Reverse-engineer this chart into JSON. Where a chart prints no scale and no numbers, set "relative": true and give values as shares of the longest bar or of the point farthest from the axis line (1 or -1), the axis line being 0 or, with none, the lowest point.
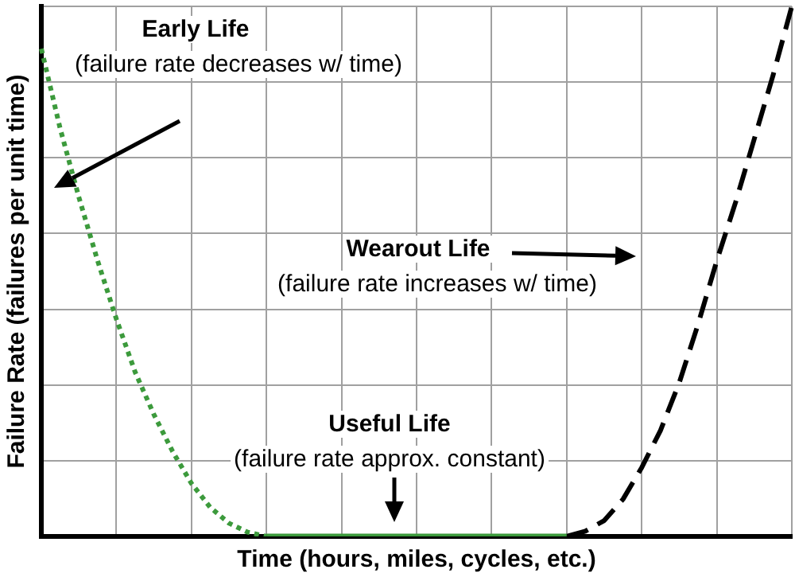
{
  "chart_data": {
    "type": "line",
    "relative": true,
    "xlabel": "Time (hours, miles, cycles, etc.)",
    "ylabel": "Failure Rate (failures per unit time)",
    "categories": [
      null,
      null,
      null,
      null,
      null,
      null,
      null,
      null,
      null,
      null,
      null,
      null,
      null,
      null,
      null,
      null,
      null,
      null,
      null,
      null,
      null,
      null,
      null,
      null,
      null,
      null,
      null,
      null,
      null,
      null,
      null,
      null,
      null,
      null,
      null,
      null,
      null,
      null,
      null,
      null,
      null
    ],
    "series": [
      {
        "color": "#3c9a3c",
        "line_style": "dotted",
        "values": [
          0.92,
          0.77,
          0.64,
          0.52,
          0.41,
          0.31,
          0.23,
          0.16,
          0.1,
          0.055,
          0.025,
          0.008,
          0,
          null,
          null,
          null,
          null,
          null,
          null,
          null,
          null,
          null,
          null,
          null,
          null,
          null,
          null,
          null,
          null,
          null,
          null,
          null,
          null,
          null,
          null,
          null,
          null,
          null,
          null,
          null,
          null
        ]
      },
      {
        "color": "#3c9a3c",
        "line_style": "solid",
        "values": [
          null,
          null,
          null,
          null,
          null,
          null,
          null,
          null,
          null,
          null,
          null,
          null,
          0,
          0,
          0,
          0,
          0,
          0,
          0,
          0,
          0,
          0,
          0,
          0,
          0,
          0,
          0,
          0,
          0,
          null,
          null,
          null,
          null,
          null,
          null,
          null,
          null,
          null,
          null,
          null,
          null
        ]
      },
      {
        "color": "#000000",
        "line_style": "dashed",
        "values": [
          null,
          null,
          null,
          null,
          null,
          null,
          null,
          null,
          null,
          null,
          null,
          null,
          null,
          null,
          null,
          null,
          null,
          null,
          null,
          null,
          null,
          null,
          null,
          null,
          null,
          null,
          null,
          null,
          0,
          0.01,
          0.03,
          0.07,
          0.13,
          0.2,
          0.29,
          0.4,
          0.52,
          0.63,
          0.75,
          0.87,
          1
        ]
      }
    ],
    "annotations": [
      "Early Life",
      "(failure rate decreases w/ time)",
      "Wearout Life",
      "(failure rate increases w/ time)",
      "Useful Life",
      "(failure rate approx. constant)"
    ],
    "grid": true,
    "legend": false,
    "marker": "none",
    "tick_labels": false
  }
}
